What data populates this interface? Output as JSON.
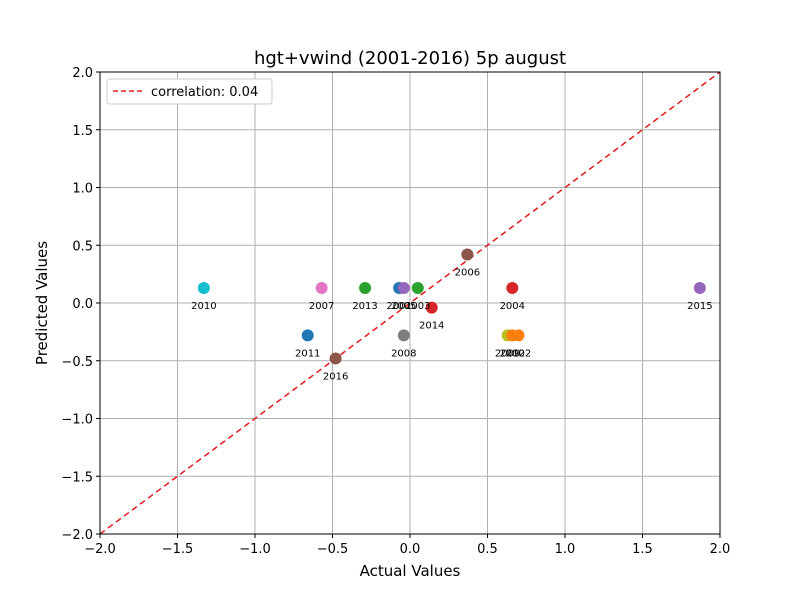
{
  "chart_data": {
    "type": "scatter",
    "title": "hgt+vwind (2001-2016) 5p august",
    "xlabel": "Actual Values",
    "ylabel": "Predicted Values",
    "xlim": [
      -2.0,
      2.0
    ],
    "ylim": [
      -2.0,
      2.0
    ],
    "xticks": [
      -2.0,
      -1.5,
      -1.0,
      -0.5,
      0.0,
      0.5,
      1.0,
      1.5,
      2.0
    ],
    "yticks": [
      -2.0,
      -1.5,
      -1.0,
      -0.5,
      0.0,
      0.5,
      1.0,
      1.5,
      2.0
    ],
    "xtick_labels": [
      "−2.0",
      "−1.5",
      "−1.0",
      "−0.5",
      "0.0",
      "0.5",
      "1.0",
      "1.5",
      "2.0"
    ],
    "ytick_labels": [
      "−2.0",
      "−1.5",
      "−1.0",
      "−0.5",
      "0.0",
      "0.5",
      "1.0",
      "1.5",
      "2.0"
    ],
    "grid": true,
    "legend": {
      "position": "upper-left",
      "label": "correlation: 0.04",
      "line_color": "#e41a1c",
      "line_style": "dashed"
    },
    "reference_line": {
      "from": [
        -2.0,
        -2.0
      ],
      "to": [
        2.0,
        2.0
      ],
      "color": "#e41a1c",
      "style": "dashed"
    },
    "points": [
      {
        "label": "2001",
        "x": -0.07,
        "y": 0.13,
        "color": "#1f77b4"
      },
      {
        "label": "2002",
        "x": 0.7,
        "y": -0.28,
        "color": "#ff7f0e"
      },
      {
        "label": "2003",
        "x": 0.05,
        "y": 0.13,
        "color": "#2ca02c"
      },
      {
        "label": "2004",
        "x": 0.66,
        "y": 0.13,
        "color": "#d62728"
      },
      {
        "label": "2005",
        "x": -0.04,
        "y": 0.13,
        "color": "#9467bd"
      },
      {
        "label": "2006",
        "x": 0.37,
        "y": 0.42,
        "color": "#8c564b"
      },
      {
        "label": "2007",
        "x": -0.57,
        "y": 0.13,
        "color": "#e377c2"
      },
      {
        "label": "2008",
        "x": -0.04,
        "y": -0.28,
        "color": "#7f7f7f"
      },
      {
        "label": "2009",
        "x": 0.63,
        "y": -0.28,
        "color": "#bcbd22"
      },
      {
        "label": "2010",
        "x": -1.33,
        "y": 0.13,
        "color": "#17becf"
      },
      {
        "label": "2011",
        "x": -0.66,
        "y": -0.28,
        "color": "#1f77b4"
      },
      {
        "label": "2012",
        "x": 0.66,
        "y": -0.28,
        "color": "#ff7f0e"
      },
      {
        "label": "2013",
        "x": -0.29,
        "y": 0.13,
        "color": "#2ca02c"
      },
      {
        "label": "2014",
        "x": 0.14,
        "y": -0.04,
        "color": "#d62728"
      },
      {
        "label": "2015",
        "x": 1.87,
        "y": 0.13,
        "color": "#9467bd"
      },
      {
        "label": "2016",
        "x": -0.48,
        "y": -0.48,
        "color": "#8c564b"
      }
    ]
  }
}
